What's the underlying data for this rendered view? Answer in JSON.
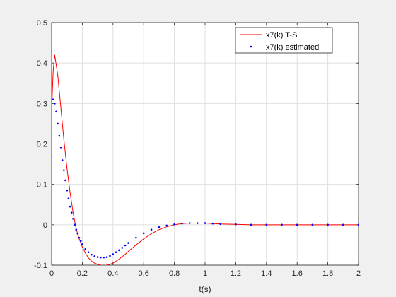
{
  "chart_data": {
    "type": "line",
    "title": "",
    "xlabel": "t(s)",
    "ylabel": "",
    "xlim": [
      0,
      2
    ],
    "ylim": [
      -0.1,
      0.5
    ],
    "xticks": [
      "0",
      "0.2",
      "0.4",
      "0.6",
      "0.8",
      "1",
      "1.2",
      "1.4",
      "1.6",
      "1.8",
      "2"
    ],
    "yticks": [
      "-0.1",
      "0",
      "0.1",
      "0.2",
      "0.3",
      "0.4",
      "0.5"
    ],
    "grid": true,
    "legend_position": "top-right",
    "series": [
      {
        "name": "x7(k) T-S",
        "style": "solid-line",
        "color": "#ff0000",
        "x": [
          0,
          0.01,
          0.02,
          0.04,
          0.06,
          0.08,
          0.1,
          0.12,
          0.14,
          0.16,
          0.18,
          0.2,
          0.22,
          0.24,
          0.26,
          0.28,
          0.3,
          0.32,
          0.34,
          0.36,
          0.38,
          0.4,
          0.42,
          0.44,
          0.46,
          0.48,
          0.5,
          0.55,
          0.6,
          0.65,
          0.7,
          0.75,
          0.8,
          0.85,
          0.9,
          0.95,
          1.0,
          1.05,
          1.1,
          1.2,
          1.3,
          1.4,
          1.5,
          1.6,
          1.8,
          2.0
        ],
        "y": [
          0.28,
          0.38,
          0.42,
          0.37,
          0.29,
          0.21,
          0.14,
          0.08,
          0.03,
          -0.01,
          -0.035,
          -0.055,
          -0.07,
          -0.082,
          -0.09,
          -0.095,
          -0.098,
          -0.1,
          -0.101,
          -0.1,
          -0.098,
          -0.095,
          -0.09,
          -0.085,
          -0.079,
          -0.073,
          -0.066,
          -0.05,
          -0.035,
          -0.022,
          -0.012,
          -0.005,
          0.0,
          0.003,
          0.004,
          0.004,
          0.004,
          0.003,
          0.002,
          0.001,
          0.0,
          0.0,
          0.0,
          0.0,
          0.0,
          0.0
        ]
      },
      {
        "name": "x7(k) estimated",
        "style": "dots",
        "color": "#0000ff",
        "x": [
          0,
          0.01,
          0.02,
          0.03,
          0.04,
          0.05,
          0.06,
          0.07,
          0.08,
          0.09,
          0.1,
          0.11,
          0.12,
          0.13,
          0.14,
          0.15,
          0.16,
          0.17,
          0.18,
          0.19,
          0.2,
          0.22,
          0.24,
          0.26,
          0.28,
          0.3,
          0.32,
          0.34,
          0.36,
          0.38,
          0.4,
          0.42,
          0.44,
          0.46,
          0.48,
          0.5,
          0.55,
          0.6,
          0.65,
          0.7,
          0.75,
          0.8,
          0.85,
          0.9,
          0.95,
          1.0,
          1.05,
          1.1,
          1.2,
          1.3,
          1.4,
          1.5,
          1.6,
          1.7,
          1.8,
          1.9,
          2.0
        ],
        "y": [
          0.17,
          0.31,
          0.3,
          0.28,
          0.25,
          0.22,
          0.19,
          0.16,
          0.135,
          0.11,
          0.085,
          0.065,
          0.045,
          0.03,
          0.015,
          0.0,
          -0.012,
          -0.022,
          -0.032,
          -0.04,
          -0.048,
          -0.06,
          -0.068,
          -0.074,
          -0.078,
          -0.08,
          -0.081,
          -0.081,
          -0.08,
          -0.077,
          -0.073,
          -0.068,
          -0.063,
          -0.057,
          -0.051,
          -0.045,
          -0.032,
          -0.021,
          -0.012,
          -0.006,
          -0.002,
          0.001,
          0.003,
          0.004,
          0.004,
          0.004,
          0.003,
          0.002,
          0.001,
          0.0,
          0.0,
          0.0,
          0.0,
          0.0,
          0.0,
          0.0,
          0.0
        ]
      }
    ]
  }
}
